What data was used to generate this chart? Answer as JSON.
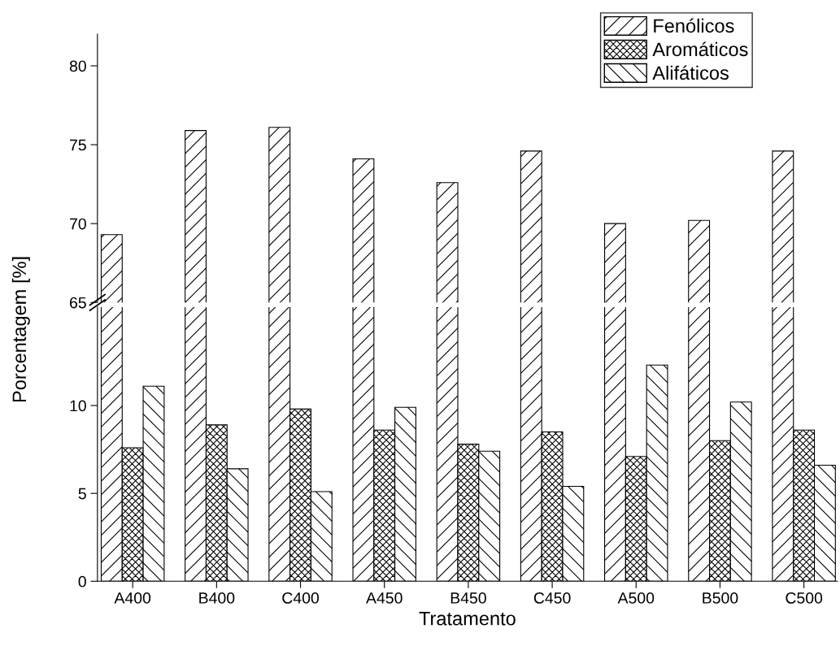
{
  "chart_data": [
    {
      "type": "bar",
      "ylim": [
        65,
        82
      ],
      "yticks": [
        65,
        70,
        75,
        80
      ],
      "tick_labels": "y",
      "legend": "top right",
      "grid": false,
      "series": [
        {
          "name": "Fenólicos",
          "color": "#000000",
          "values": [
            69.3,
            75.9,
            76.1,
            74.1,
            72.6,
            74.6,
            70.0,
            70.2,
            74.6
          ]
        }
      ]
    },
    {
      "type": "bar",
      "categories": [
        "A400",
        "B400",
        "C400",
        "A450",
        "B450",
        "C450",
        "A500",
        "B500",
        "C500"
      ],
      "ylim": [
        0,
        15.6
      ],
      "yticks": [
        0,
        5,
        10
      ],
      "xlabel": "Tratamento",
      "ylabel": "Porcentagem [%]",
      "grid": false,
      "legend": "top right",
      "series": [
        {
          "name": "Aromáticos",
          "color": "#000000",
          "values": [
            7.6,
            8.9,
            9.8,
            8.6,
            7.8,
            8.5,
            7.1,
            8.0,
            8.6
          ]
        },
        {
          "name": "Alifáticos",
          "color": "#000000",
          "values": [
            11.1,
            6.4,
            5.1,
            9.9,
            7.4,
            5.4,
            12.3,
            10.2,
            6.6
          ]
        }
      ]
    }
  ]
}
